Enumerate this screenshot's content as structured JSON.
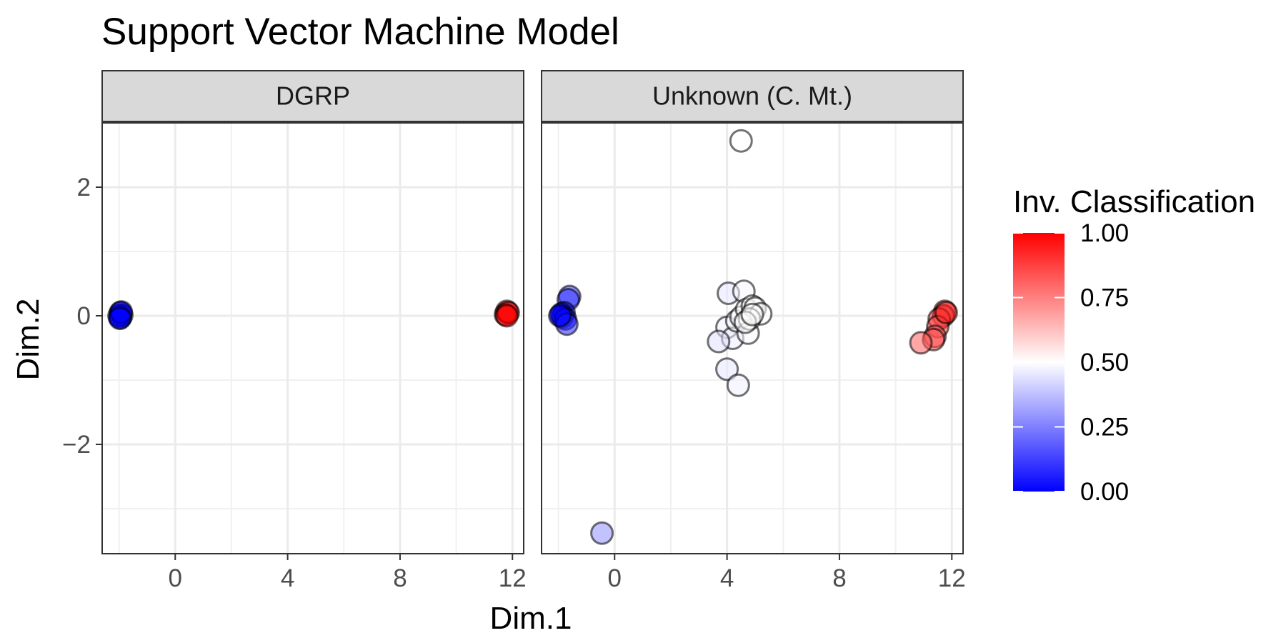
{
  "chart_data": {
    "type": "scatter",
    "title": "Support Vector Machine Model",
    "xlabel": "Dim.1",
    "ylabel": "Dim.2",
    "xlim": [
      -2.6,
      12.4
    ],
    "ylim": [
      -3.7,
      3.0
    ],
    "x_ticks": [
      0,
      4,
      8,
      12
    ],
    "x_tick_labels": [
      "0",
      "4",
      "8",
      "12"
    ],
    "y_ticks": [
      -2,
      0,
      2
    ],
    "y_tick_labels": [
      "−2",
      "0",
      "2"
    ],
    "grid": true,
    "legend": {
      "title": "Inv. Classification",
      "placement": "right",
      "type": "colorbar",
      "range": [
        0,
        1
      ],
      "breaks": [
        0,
        0.25,
        0.5,
        0.75,
        1
      ],
      "labels": [
        "0.00",
        "0.25",
        "0.50",
        "0.75",
        "1.00"
      ],
      "colors": {
        "low": "#0000ff",
        "mid": "#ffffff",
        "high": "#ff0000"
      }
    },
    "panels": [
      {
        "name": "DGRP",
        "points": [
          {
            "x": -1.95,
            "y": 0.05,
            "c": 0.0
          },
          {
            "x": -1.95,
            "y": -0.03,
            "c": 0.0
          },
          {
            "x": -1.9,
            "y": 0.01,
            "c": 0.0
          },
          {
            "x": -2.0,
            "y": 0.0,
            "c": 0.0
          },
          {
            "x": -1.92,
            "y": 0.06,
            "c": 0.0
          },
          {
            "x": -1.97,
            "y": -0.04,
            "c": 0.0
          },
          {
            "x": 11.8,
            "y": 0.07,
            "c": 1.0
          },
          {
            "x": 11.75,
            "y": 0.02,
            "c": 1.0
          },
          {
            "x": 11.85,
            "y": 0.05,
            "c": 1.0
          },
          {
            "x": 11.8,
            "y": 0.0,
            "c": 1.0
          }
        ]
      },
      {
        "name": "Unknown (C. Mt.)",
        "points": [
          {
            "x": 4.5,
            "y": 2.72,
            "c": 0.5
          },
          {
            "x": -0.45,
            "y": -3.38,
            "c": 0.28
          },
          {
            "x": -1.6,
            "y": 0.3,
            "c": 0.12
          },
          {
            "x": -1.65,
            "y": 0.25,
            "c": 0.1
          },
          {
            "x": -1.8,
            "y": 0.05,
            "c": 0.02
          },
          {
            "x": -1.85,
            "y": -0.02,
            "c": 0.0
          },
          {
            "x": -1.9,
            "y": 0.03,
            "c": 0.0
          },
          {
            "x": -1.75,
            "y": -0.05,
            "c": 0.02
          },
          {
            "x": -1.7,
            "y": -0.13,
            "c": 0.08
          },
          {
            "x": -1.95,
            "y": 0.0,
            "c": 0.0
          },
          {
            "x": 4.05,
            "y": 0.35,
            "c": 0.45
          },
          {
            "x": 4.6,
            "y": 0.38,
            "c": 0.48
          },
          {
            "x": 4.0,
            "y": -0.18,
            "c": 0.47
          },
          {
            "x": 4.2,
            "y": -0.35,
            "c": 0.46
          },
          {
            "x": 3.7,
            "y": -0.4,
            "c": 0.44
          },
          {
            "x": 4.0,
            "y": -0.83,
            "c": 0.45
          },
          {
            "x": 4.4,
            "y": -1.08,
            "c": 0.47
          },
          {
            "x": 4.35,
            "y": -0.08,
            "c": 0.48
          },
          {
            "x": 4.5,
            "y": -0.02,
            "c": 0.49
          },
          {
            "x": 4.7,
            "y": 0.1,
            "c": 0.5
          },
          {
            "x": 4.75,
            "y": -0.27,
            "c": 0.49
          },
          {
            "x": 4.9,
            "y": 0.15,
            "c": 0.5
          },
          {
            "x": 5.0,
            "y": 0.12,
            "c": 0.5
          },
          {
            "x": 5.2,
            "y": 0.03,
            "c": 0.5
          },
          {
            "x": 4.8,
            "y": -0.05,
            "c": 0.5
          },
          {
            "x": 4.65,
            "y": -0.1,
            "c": 0.5
          },
          {
            "x": 4.9,
            "y": 0.02,
            "c": 0.5
          },
          {
            "x": 11.75,
            "y": 0.07,
            "c": 0.92
          },
          {
            "x": 11.7,
            "y": 0.0,
            "c": 0.9
          },
          {
            "x": 11.55,
            "y": -0.05,
            "c": 0.88
          },
          {
            "x": 11.5,
            "y": -0.17,
            "c": 0.86
          },
          {
            "x": 11.4,
            "y": -0.32,
            "c": 0.84
          },
          {
            "x": 11.35,
            "y": -0.37,
            "c": 0.85
          },
          {
            "x": 10.9,
            "y": -0.42,
            "c": 0.82
          },
          {
            "x": 11.8,
            "y": 0.05,
            "c": 0.93
          }
        ]
      }
    ]
  }
}
